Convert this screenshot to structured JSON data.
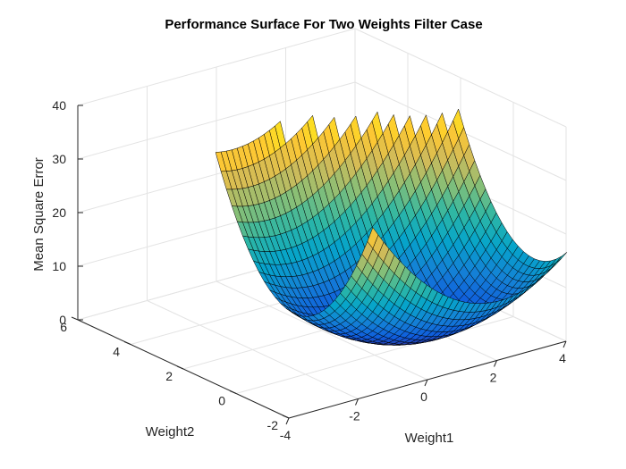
{
  "chart_data": {
    "type": "surface",
    "title": "Performance Surface For Two Weights Filter Case",
    "xlabel": "Weight1",
    "ylabel": "Weight2",
    "zlabel": "Mean Square Error",
    "xlim": [
      -4,
      4
    ],
    "ylim": [
      -2,
      6
    ],
    "zlim": [
      0,
      40
    ],
    "xticks": [
      "-4",
      "-2",
      "0",
      "2",
      "4"
    ],
    "yticks": [
      "-2",
      "0",
      "2",
      "4",
      "6"
    ],
    "zticks": [
      "0",
      "10",
      "20",
      "30",
      "40"
    ],
    "grid": true,
    "colormap": "parula",
    "colormap_stops": [
      "#352a87",
      "#0f5cdd",
      "#1481d6",
      "#06a4ca",
      "#2eb7a4",
      "#87bf77",
      "#d1bb59",
      "#fec832",
      "#f9fb0e"
    ],
    "edge_color": "#000000",
    "surface": {
      "w1_range": [
        -1.5,
        4.1
      ],
      "w2_range": [
        -1.9,
        5.5
      ],
      "mse_cap": 34,
      "minimum": {
        "w1": 1.0,
        "w2": 0.3,
        "mse": 0.1
      },
      "quadratic": {
        "a": 1.5,
        "b": 1.6,
        "c": 2.6
      }
    }
  }
}
